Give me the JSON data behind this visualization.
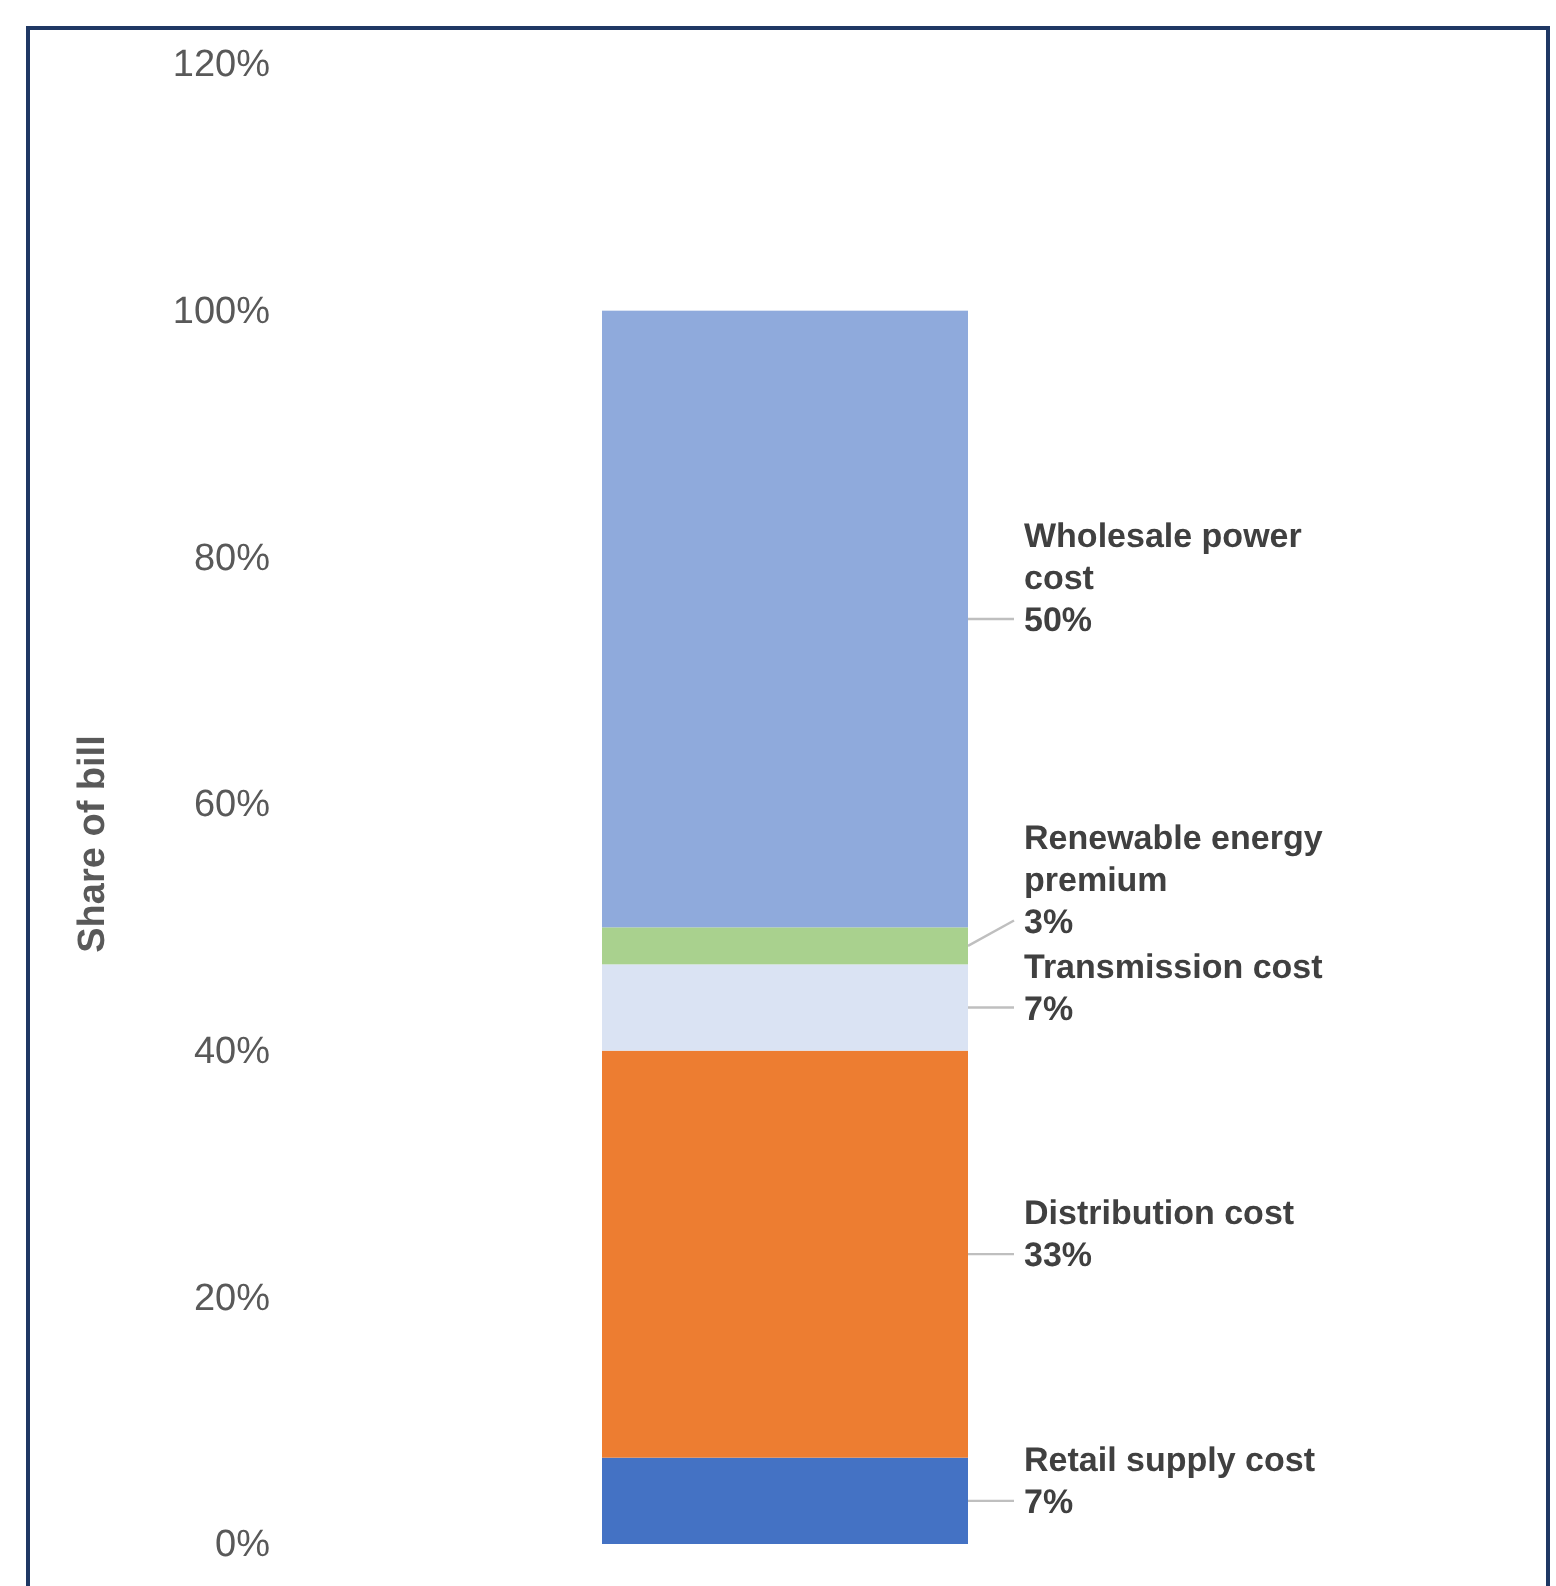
{
  "chart_data": {
    "type": "bar",
    "stacked": true,
    "ylabel": "Share of bill",
    "categories": [
      null
    ],
    "series": [
      {
        "name": "Retail supply cost",
        "color": "#4472c4",
        "values": [
          7
        ],
        "value_labels": [
          "7%"
        ]
      },
      {
        "name": "Distribution  cost",
        "color": "#ed7d31",
        "values": [
          33
        ],
        "value_labels": [
          "33%"
        ]
      },
      {
        "name": "Transmission cost",
        "color": "#dae3f3",
        "values": [
          7
        ],
        "value_labels": [
          "7%"
        ]
      },
      {
        "name": "Renewable energy premium",
        "color": "#a9d18e",
        "values": [
          3
        ],
        "value_labels": [
          "3%"
        ]
      },
      {
        "name": "Wholesale power cost",
        "color": "#8faadc",
        "values": [
          50
        ],
        "value_labels": [
          "50%"
        ]
      }
    ],
    "ylim": [
      0,
      120
    ],
    "yticks": [
      {
        "value": 0,
        "label": "0%"
      },
      {
        "value": 20,
        "label": "20%"
      },
      {
        "value": 40,
        "label": "40%"
      },
      {
        "value": 60,
        "label": "60%"
      },
      {
        "value": 80,
        "label": "80%"
      },
      {
        "value": 100,
        "label": "100%"
      },
      {
        "value": 120,
        "label": "120%"
      }
    ],
    "grid": false
  }
}
